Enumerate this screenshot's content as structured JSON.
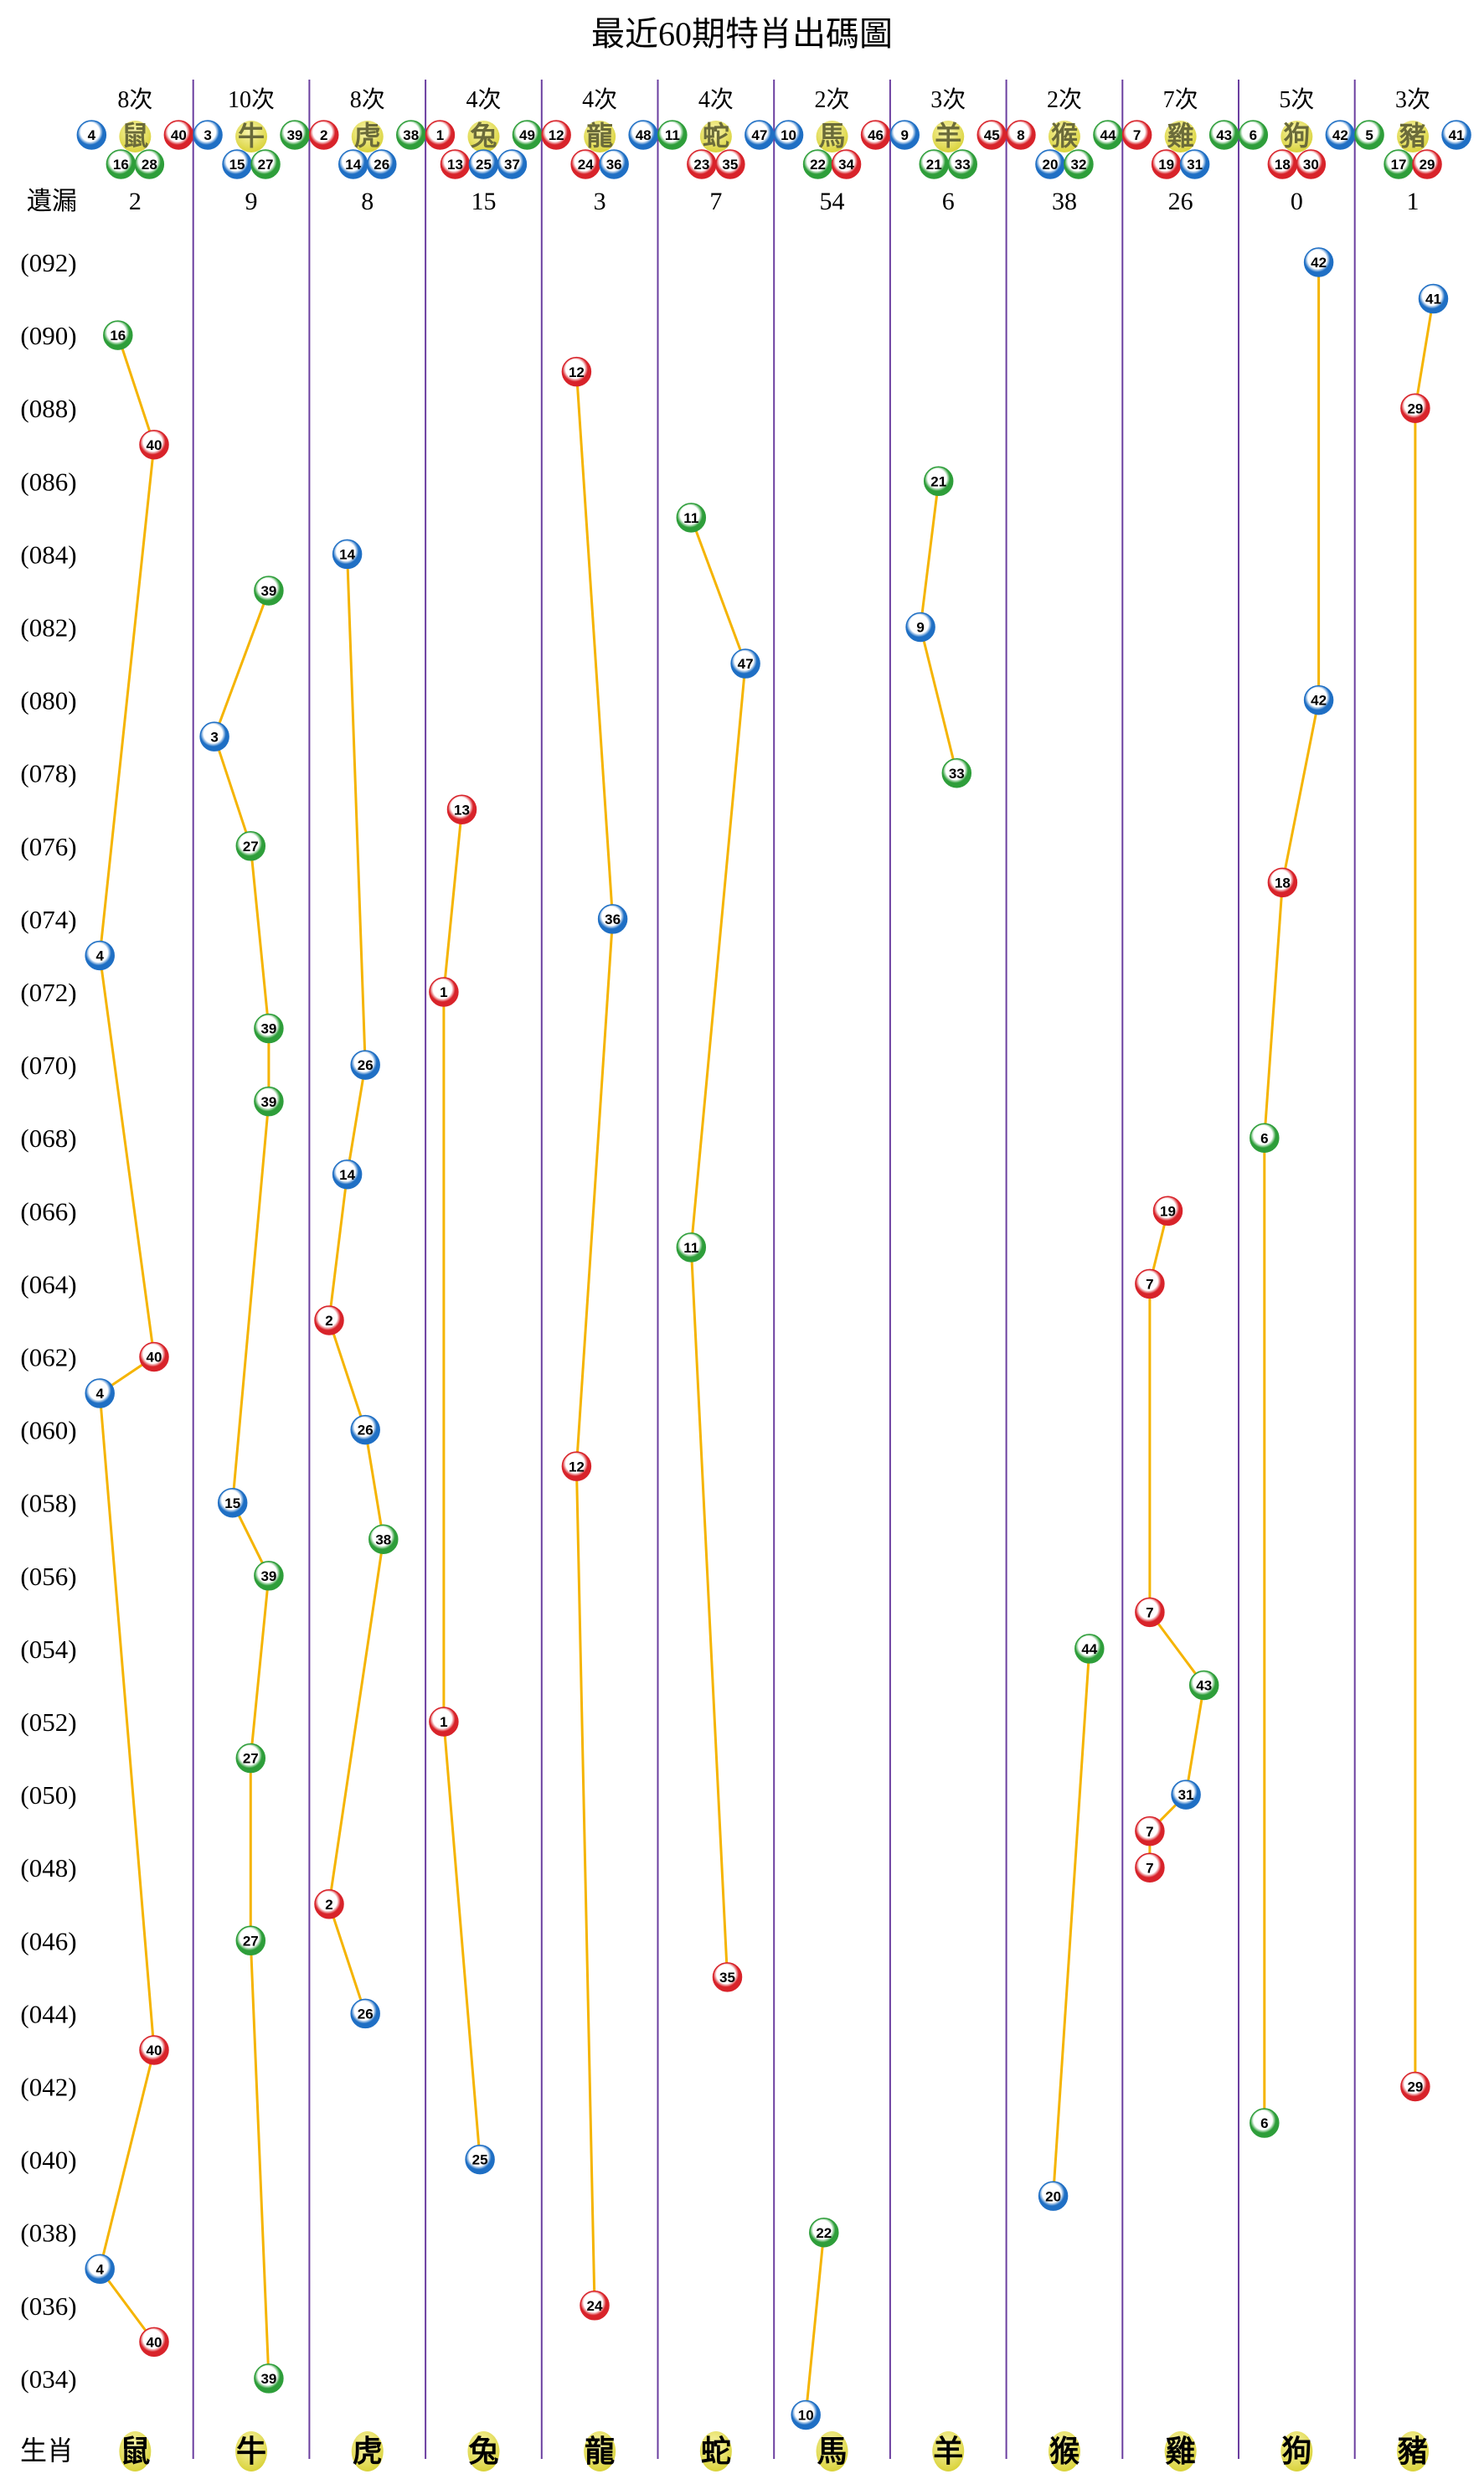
{
  "title": "最近60期特肖出碼圖",
  "omission_label": "遺漏",
  "zodiac_row_label": "生肖",
  "colors": {
    "red": "#d8232a",
    "blue": "#1f6fc4",
    "green": "#2e9e3a",
    "divider": "#6b3fa0",
    "connector": "#f5b400",
    "zodiac_ball": "#d9d23a"
  },
  "ball_color_numbers": {
    "red": [
      1,
      2,
      7,
      8,
      12,
      13,
      18,
      19,
      23,
      24,
      29,
      30,
      34,
      35,
      40,
      45,
      46
    ],
    "blue": [
      3,
      4,
      9,
      10,
      14,
      15,
      20,
      25,
      26,
      31,
      36,
      37,
      41,
      42,
      47,
      48
    ],
    "green": [
      5,
      6,
      11,
      16,
      17,
      21,
      22,
      27,
      28,
      32,
      33,
      38,
      39,
      43,
      44,
      49
    ]
  },
  "zodiacs": [
    {
      "name": "鼠",
      "count_label": "8次",
      "numbers": [
        4,
        16,
        28,
        40
      ],
      "omission": "2"
    },
    {
      "name": "牛",
      "count_label": "10次",
      "numbers": [
        3,
        15,
        27,
        39
      ],
      "omission": "9"
    },
    {
      "name": "虎",
      "count_label": "8次",
      "numbers": [
        2,
        14,
        26,
        38
      ],
      "omission": "8"
    },
    {
      "name": "兔",
      "count_label": "4次",
      "numbers": [
        1,
        13,
        25,
        37,
        49
      ],
      "omission": "15"
    },
    {
      "name": "龍",
      "count_label": "4次",
      "numbers": [
        12,
        24,
        36,
        48
      ],
      "omission": "3"
    },
    {
      "name": "蛇",
      "count_label": "4次",
      "numbers": [
        11,
        23,
        35,
        47
      ],
      "omission": "7"
    },
    {
      "name": "馬",
      "count_label": "2次",
      "numbers": [
        10,
        22,
        34,
        46
      ],
      "omission": "54"
    },
    {
      "name": "羊",
      "count_label": "3次",
      "numbers": [
        9,
        21,
        33,
        45
      ],
      "omission": "6"
    },
    {
      "name": "猴",
      "count_label": "2次",
      "numbers": [
        8,
        20,
        32,
        44
      ],
      "omission": "38"
    },
    {
      "name": "雞",
      "count_label": "7次",
      "numbers": [
        7,
        19,
        31,
        43
      ],
      "omission": "26"
    },
    {
      "name": "狗",
      "count_label": "5次",
      "numbers": [
        6,
        18,
        30,
        42
      ],
      "omission": "0"
    },
    {
      "name": "豬",
      "count_label": "3次",
      "numbers": [
        5,
        17,
        29,
        41
      ],
      "omission": "1"
    }
  ],
  "period_labels": [
    "(092)",
    "(090)",
    "(088)",
    "(086)",
    "(084)",
    "(082)",
    "(080)",
    "(078)",
    "(076)",
    "(074)",
    "(072)",
    "(070)",
    "(068)",
    "(066)",
    "(064)",
    "(062)",
    "(060)",
    "(058)",
    "(056)",
    "(054)",
    "(052)",
    "(050)",
    "(048)",
    "(046)",
    "(044)",
    "(042)",
    "(040)",
    "(038)",
    "(036)",
    "(034)"
  ],
  "chart_data": {
    "type": "scatter",
    "title": "最近60期特肖出碼圖",
    "x_categories": [
      "鼠",
      "牛",
      "虎",
      "兔",
      "龍",
      "蛇",
      "馬",
      "羊",
      "猴",
      "雞",
      "狗",
      "豬"
    ],
    "y_range": [
      "033",
      "092"
    ],
    "points": [
      {
        "period": "092",
        "zodiac": "狗",
        "number": 42
      },
      {
        "period": "091",
        "zodiac": "豬",
        "number": 41
      },
      {
        "period": "090",
        "zodiac": "鼠",
        "number": 16
      },
      {
        "period": "089",
        "zodiac": "龍",
        "number": 12
      },
      {
        "period": "088",
        "zodiac": "豬",
        "number": 29
      },
      {
        "period": "087",
        "zodiac": "鼠",
        "number": 40
      },
      {
        "period": "086",
        "zodiac": "羊",
        "number": 21
      },
      {
        "period": "085",
        "zodiac": "蛇",
        "number": 11
      },
      {
        "period": "084",
        "zodiac": "虎",
        "number": 14
      },
      {
        "period": "083",
        "zodiac": "牛",
        "number": 39
      },
      {
        "period": "082",
        "zodiac": "羊",
        "number": 9
      },
      {
        "period": "081",
        "zodiac": "蛇",
        "number": 47
      },
      {
        "period": "080",
        "zodiac": "狗",
        "number": 42
      },
      {
        "period": "079",
        "zodiac": "牛",
        "number": 3
      },
      {
        "period": "078",
        "zodiac": "羊",
        "number": 33
      },
      {
        "period": "077",
        "zodiac": "兔",
        "number": 13
      },
      {
        "period": "076",
        "zodiac": "牛",
        "number": 27
      },
      {
        "period": "075",
        "zodiac": "狗",
        "number": 18
      },
      {
        "period": "074",
        "zodiac": "龍",
        "number": 36
      },
      {
        "period": "073",
        "zodiac": "鼠",
        "number": 4
      },
      {
        "period": "072",
        "zodiac": "兔",
        "number": 1
      },
      {
        "period": "071",
        "zodiac": "牛",
        "number": 39
      },
      {
        "period": "070",
        "zodiac": "虎",
        "number": 26
      },
      {
        "period": "069",
        "zodiac": "牛",
        "number": 39
      },
      {
        "period": "068",
        "zodiac": "狗",
        "number": 6
      },
      {
        "period": "067",
        "zodiac": "虎",
        "number": 14
      },
      {
        "period": "066",
        "zodiac": "雞",
        "number": 19
      },
      {
        "period": "065",
        "zodiac": "蛇",
        "number": 11
      },
      {
        "period": "064",
        "zodiac": "雞",
        "number": 7
      },
      {
        "period": "063",
        "zodiac": "虎",
        "number": 2
      },
      {
        "period": "062",
        "zodiac": "鼠",
        "number": 40
      },
      {
        "period": "061",
        "zodiac": "鼠",
        "number": 4
      },
      {
        "period": "060",
        "zodiac": "虎",
        "number": 26
      },
      {
        "period": "059",
        "zodiac": "龍",
        "number": 12
      },
      {
        "period": "058",
        "zodiac": "牛",
        "number": 15
      },
      {
        "period": "057",
        "zodiac": "虎",
        "number": 38
      },
      {
        "period": "056",
        "zodiac": "牛",
        "number": 39
      },
      {
        "period": "055",
        "zodiac": "雞",
        "number": 7
      },
      {
        "period": "054",
        "zodiac": "猴",
        "number": 44
      },
      {
        "period": "053",
        "zodiac": "雞",
        "number": 43
      },
      {
        "period": "052",
        "zodiac": "兔",
        "number": 1
      },
      {
        "period": "051",
        "zodiac": "牛",
        "number": 27
      },
      {
        "period": "050",
        "zodiac": "雞",
        "number": 31
      },
      {
        "period": "049",
        "zodiac": "雞",
        "number": 7
      },
      {
        "period": "048",
        "zodiac": "雞",
        "number": 7
      },
      {
        "period": "047",
        "zodiac": "虎",
        "number": 2
      },
      {
        "period": "046",
        "zodiac": "牛",
        "number": 27
      },
      {
        "period": "045",
        "zodiac": "蛇",
        "number": 35
      },
      {
        "period": "044",
        "zodiac": "虎",
        "number": 26
      },
      {
        "period": "043",
        "zodiac": "鼠",
        "number": 40
      },
      {
        "period": "042",
        "zodiac": "豬",
        "number": 29
      },
      {
        "period": "041",
        "zodiac": "狗",
        "number": 6
      },
      {
        "period": "040",
        "zodiac": "兔",
        "number": 25
      },
      {
        "period": "039",
        "zodiac": "猴",
        "number": 20
      },
      {
        "period": "038",
        "zodiac": "馬",
        "number": 22
      },
      {
        "period": "037",
        "zodiac": "鼠",
        "number": 4
      },
      {
        "period": "036",
        "zodiac": "龍",
        "number": 24
      },
      {
        "period": "035",
        "zodiac": "鼠",
        "number": 40
      },
      {
        "period": "034",
        "zodiac": "牛",
        "number": 39
      },
      {
        "period": "033",
        "zodiac": "馬",
        "number": 10
      }
    ]
  }
}
